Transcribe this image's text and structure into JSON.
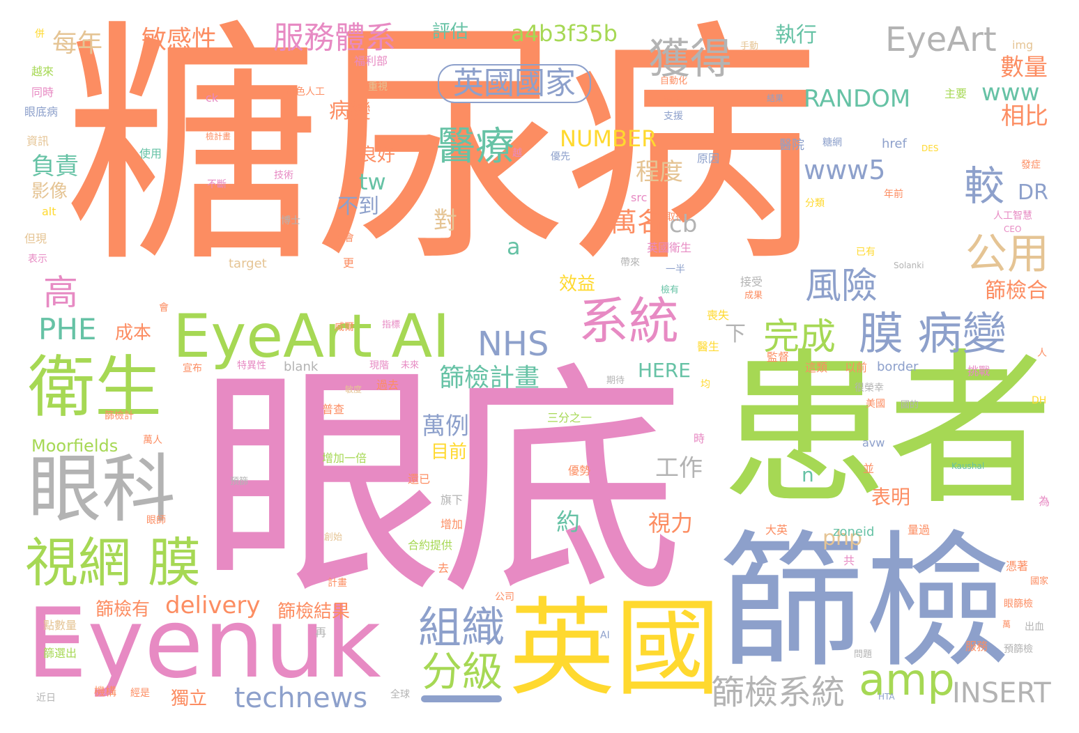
{
  "palette": {
    "orange": "#fc8d62",
    "green": "#a6d854",
    "pink": "#e78ac3",
    "blue": "#8da0cb",
    "yellow": "#ffd92f",
    "gray": "#b3b3b3",
    "tan": "#e5c494",
    "teal": "#66c2a5"
  },
  "words": [
    {
      "text": "糖尿病",
      "color": "orange"
    },
    {
      "text": "眼底",
      "color": "pink"
    },
    {
      "text": "患者",
      "color": "green"
    },
    {
      "text": "篩檢",
      "color": "blue"
    },
    {
      "text": "英國",
      "color": "yellow"
    },
    {
      "text": "Eyenuk",
      "color": "pink"
    },
    {
      "text": "EyeArt AI",
      "color": "green"
    },
    {
      "text": "衛生",
      "color": "green"
    },
    {
      "text": "眼科",
      "color": "gray"
    },
    {
      "text": "視網 膜",
      "color": "green"
    },
    {
      "text": "系統",
      "color": "pink"
    },
    {
      "text": "膜 病變",
      "color": "blue"
    },
    {
      "text": "組織",
      "color": "blue"
    },
    {
      "text": "分級",
      "color": "green"
    },
    {
      "text": "amp",
      "color": "green"
    },
    {
      "text": "篩檢系統",
      "color": "gray"
    },
    {
      "text": "technews",
      "color": "blue"
    },
    {
      "text": "INSERT",
      "color": "gray"
    },
    {
      "text": "EyeArt",
      "color": "gray"
    },
    {
      "text": "英國國家",
      "color": "blue"
    },
    {
      "text": "服務體系",
      "color": "pink"
    },
    {
      "text": "獲得",
      "color": "gray"
    },
    {
      "text": "公用",
      "color": "tan"
    },
    {
      "text": "風險",
      "color": "blue"
    },
    {
      "text": "完成",
      "color": "green"
    },
    {
      "text": "NHS",
      "color": "blue"
    },
    {
      "text": "較",
      "color": "blue"
    },
    {
      "text": "醫療",
      "color": "teal"
    },
    {
      "text": "篩檢計畫",
      "color": "teal"
    },
    {
      "text": "delivery",
      "color": "orange"
    },
    {
      "text": "PHE",
      "color": "teal"
    },
    {
      "text": "高",
      "color": "pink"
    },
    {
      "text": "a4b3f35b",
      "color": "green"
    },
    {
      "text": "敏感性",
      "color": "orange"
    },
    {
      "text": "每年",
      "color": "tan"
    },
    {
      "text": "RANDOM",
      "color": "teal"
    },
    {
      "text": "NUMBER",
      "color": "yellow"
    },
    {
      "text": "www5",
      "color": "blue"
    },
    {
      "text": "www",
      "color": "teal"
    },
    {
      "text": "數量",
      "color": "orange"
    },
    {
      "text": "相比",
      "color": "orange"
    },
    {
      "text": "執行",
      "color": "teal"
    },
    {
      "text": "評估",
      "color": "teal"
    },
    {
      "text": "病變",
      "color": "orange"
    },
    {
      "text": "程度",
      "color": "tan"
    },
    {
      "text": "萬名",
      "color": "orange"
    },
    {
      "text": "cb",
      "color": "gray"
    },
    {
      "text": "對",
      "color": "tan"
    },
    {
      "text": "不到",
      "color": "blue"
    },
    {
      "text": "tw",
      "color": "teal"
    },
    {
      "text": "良好",
      "color": "orange"
    },
    {
      "text": "負責",
      "color": "teal"
    },
    {
      "text": "影像",
      "color": "tan"
    },
    {
      "text": "成本",
      "color": "orange"
    },
    {
      "text": "下",
      "color": "gray"
    },
    {
      "text": "DR",
      "color": "blue"
    },
    {
      "text": "篩檢合",
      "color": "orange"
    },
    {
      "text": "a",
      "color": "teal"
    },
    {
      "text": "工作",
      "color": "gray"
    },
    {
      "text": "HERE",
      "color": "teal"
    },
    {
      "text": "萬例",
      "color": "blue"
    },
    {
      "text": "目前",
      "color": "yellow"
    },
    {
      "text": "效益",
      "color": "yellow"
    },
    {
      "text": "約",
      "color": "teal"
    },
    {
      "text": "視力",
      "color": "orange"
    },
    {
      "text": "php",
      "color": "tan"
    },
    {
      "text": "表明",
      "color": "orange"
    },
    {
      "text": "n",
      "color": "teal"
    },
    {
      "text": "Moorfields",
      "color": "green"
    },
    {
      "text": "篩檢有",
      "color": "orange"
    },
    {
      "text": "篩檢結果",
      "color": "orange"
    },
    {
      "text": "獨立",
      "color": "orange"
    },
    {
      "text": "img",
      "color": "tan"
    },
    {
      "text": "href",
      "color": "blue"
    },
    {
      "text": "target",
      "color": "tan"
    },
    {
      "text": "blank",
      "color": "gray"
    },
    {
      "text": "border",
      "color": "blue"
    },
    {
      "text": "alt",
      "color": "yellow"
    },
    {
      "text": "ck",
      "color": "pink"
    },
    {
      "text": "src",
      "color": "pink"
    },
    {
      "text": "DES",
      "color": "yellow"
    },
    {
      "text": "CEO",
      "color": "pink"
    },
    {
      "text": "Solanki",
      "color": "gray"
    },
    {
      "text": "avw",
      "color": "blue"
    },
    {
      "text": "Kaushal",
      "color": "teal"
    },
    {
      "text": "zoneid",
      "color": "teal"
    },
    {
      "text": "DH",
      "color": "yellow"
    },
    {
      "text": "AI",
      "color": "blue"
    },
    {
      "text": "HTA",
      "color": "blue"
    },
    {
      "text": "手動",
      "color": "tan"
    },
    {
      "text": "福利部",
      "color": "pink"
    },
    {
      "text": "越來",
      "color": "green"
    },
    {
      "text": "同時",
      "color": "pink"
    },
    {
      "text": "眼底病",
      "color": "blue"
    },
    {
      "text": "資訊",
      "color": "tan"
    },
    {
      "text": "使用",
      "color": "teal"
    },
    {
      "text": "出色人工",
      "color": "orange"
    },
    {
      "text": "重視",
      "color": "tan"
    },
    {
      "text": "自動化",
      "color": "orange"
    },
    {
      "text": "導致",
      "color": "orange"
    },
    {
      "text": "支援",
      "color": "blue"
    },
    {
      "text": "結果",
      "color": "blue"
    },
    {
      "text": "主要",
      "color": "green"
    },
    {
      "text": "醫院",
      "color": "blue"
    },
    {
      "text": "糖網",
      "color": "blue"
    },
    {
      "text": "原因",
      "color": "blue"
    },
    {
      "text": "發症",
      "color": "orange"
    },
    {
      "text": "分類",
      "color": "yellow"
    },
    {
      "text": "年前",
      "color": "orange"
    },
    {
      "text": "人工智慧",
      "color": "pink"
    },
    {
      "text": "取得",
      "color": "orange"
    },
    {
      "text": "英國衛生",
      "color": "pink"
    },
    {
      "text": "一半",
      "color": "blue"
    },
    {
      "text": "已有",
      "color": "yellow"
    },
    {
      "text": "帶來",
      "color": "gray"
    },
    {
      "text": "接受",
      "color": "gray"
    },
    {
      "text": "檢有",
      "color": "teal"
    },
    {
      "text": "成果",
      "color": "orange"
    },
    {
      "text": "喪失",
      "color": "yellow"
    },
    {
      "text": "醫生",
      "color": "yellow"
    },
    {
      "text": "監督",
      "color": "orange"
    },
    {
      "text": "這類",
      "color": "orange"
    },
    {
      "text": "以前",
      "color": "orange"
    },
    {
      "text": "挑戰",
      "color": "pink"
    },
    {
      "text": "很榮幸",
      "color": "gray"
    },
    {
      "text": "美國",
      "color": "orange"
    },
    {
      "text": "國的",
      "color": "gray"
    },
    {
      "text": "三分之一",
      "color": "green"
    },
    {
      "text": "期待",
      "color": "gray"
    },
    {
      "text": "過去",
      "color": "orange"
    },
    {
      "text": "敏度",
      "color": "tan"
    },
    {
      "text": "普查",
      "color": "orange"
    },
    {
      "text": "增加一倍",
      "color": "green"
    },
    {
      "text": "優勢",
      "color": "orange"
    },
    {
      "text": "旗下",
      "color": "gray"
    },
    {
      "text": "還已",
      "color": "orange"
    },
    {
      "text": "增加",
      "color": "orange"
    },
    {
      "text": "合約提供",
      "color": "green"
    },
    {
      "text": "去",
      "color": "orange"
    },
    {
      "text": "共",
      "color": "pink"
    },
    {
      "text": "大英",
      "color": "orange"
    },
    {
      "text": "量過",
      "color": "orange"
    },
    {
      "text": "憑著",
      "color": "orange"
    },
    {
      "text": "國家",
      "color": "orange"
    },
    {
      "text": "眼篩檢",
      "color": "orange"
    },
    {
      "text": "出血",
      "color": "gray"
    },
    {
      "text": "服務",
      "color": "orange"
    },
    {
      "text": "預篩檢",
      "color": "gray"
    },
    {
      "text": "問題",
      "color": "gray"
    },
    {
      "text": "全球",
      "color": "gray"
    },
    {
      "text": "機構",
      "color": "orange"
    },
    {
      "text": "經是",
      "color": "orange"
    },
    {
      "text": "再",
      "color": "gray"
    },
    {
      "text": "近日",
      "color": "gray"
    },
    {
      "text": "點數量",
      "color": "tan"
    },
    {
      "text": "篩選出",
      "color": "green"
    },
    {
      "text": "公司",
      "color": "orange"
    },
    {
      "text": "計畫",
      "color": "orange"
    },
    {
      "text": "篩檢計",
      "color": "orange"
    },
    {
      "text": "萬人",
      "color": "orange"
    },
    {
      "text": "眼師",
      "color": "orange"
    },
    {
      "text": "預篩",
      "color": "gray"
    },
    {
      "text": "創始",
      "color": "tan"
    },
    {
      "text": "時",
      "color": "pink"
    },
    {
      "text": "並",
      "color": "orange"
    },
    {
      "text": "為",
      "color": "pink"
    },
    {
      "text": "人",
      "color": "orange"
    },
    {
      "text": "更",
      "color": "orange"
    },
    {
      "text": "社會",
      "color": "orange"
    },
    {
      "text": "博士",
      "color": "gray"
    },
    {
      "text": "技術",
      "color": "pink"
    },
    {
      "text": "不斷",
      "color": "pink"
    },
    {
      "text": "優先",
      "color": "blue"
    },
    {
      "text": "威爾",
      "color": "orange"
    },
    {
      "text": "宣布",
      "color": "orange"
    },
    {
      "text": "特異性",
      "color": "pink"
    },
    {
      "text": "現階",
      "color": "pink"
    },
    {
      "text": "未來",
      "color": "pink"
    },
    {
      "text": "指標",
      "color": "pink"
    },
    {
      "text": "表示",
      "color": "pink"
    },
    {
      "text": "但現",
      "color": "tan"
    },
    {
      "text": "併",
      "color": "yellow"
    },
    {
      "text": "檢計畫",
      "color": "orange"
    },
    {
      "text": "越",
      "color": "pink"
    },
    {
      "text": "會",
      "color": "orange"
    },
    {
      "text": "萬",
      "color": "orange"
    },
    {
      "text": "均",
      "color": "yellow"
    }
  ]
}
